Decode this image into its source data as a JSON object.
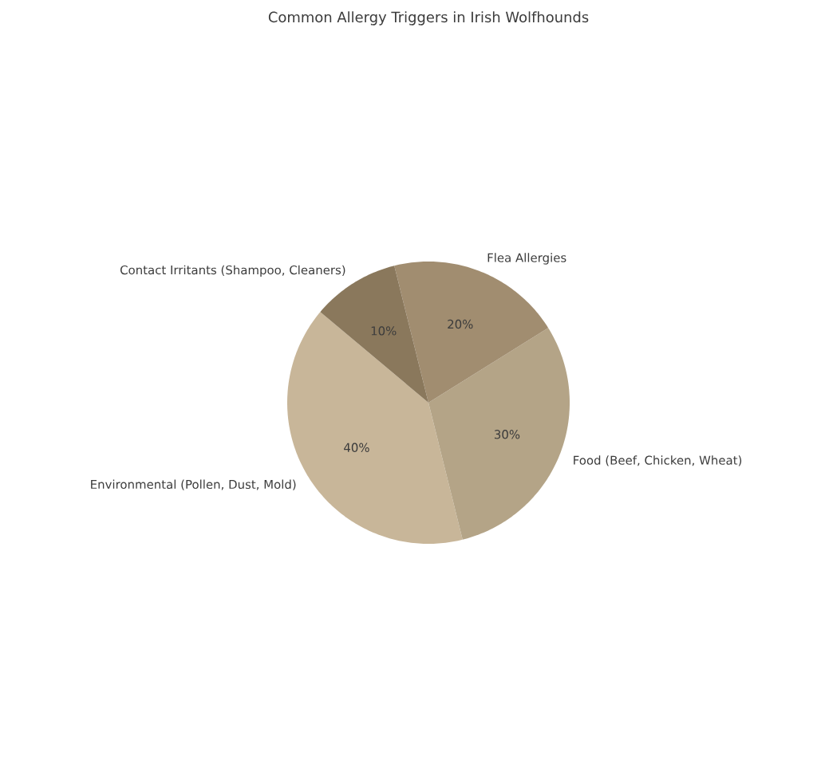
{
  "chart_data": {
    "type": "pie",
    "title": "Common Allergy Triggers in Irish Wolfhounds",
    "categories": [
      "Environmental (Pollen, Dust, Mold)",
      "Food (Beef, Chicken, Wheat)",
      "Flea Allergies",
      "Contact Irritants (Shampoo, Cleaners)"
    ],
    "values": [
      40,
      30,
      20,
      10
    ],
    "colors": [
      "#c8b699",
      "#b4a487",
      "#a18d70",
      "#8a785c"
    ],
    "value_labels": [
      "40%",
      "30%",
      "20%",
      "10%"
    ]
  }
}
